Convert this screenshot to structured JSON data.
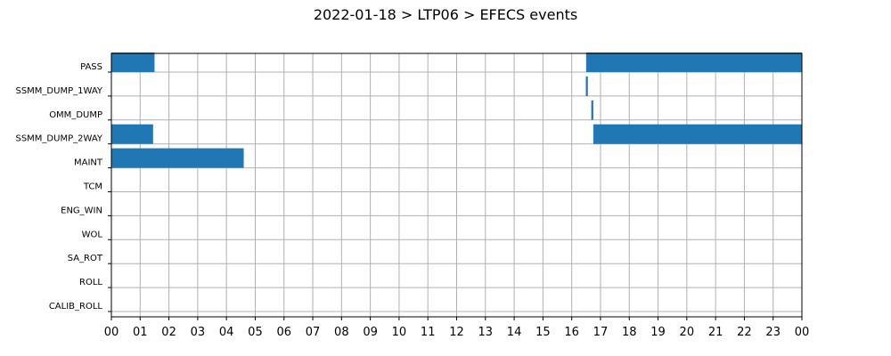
{
  "chart_data": {
    "type": "bar",
    "orientation": "horizontal-timeline",
    "title": "2022-01-18 > LTP06 > EFECS events",
    "xlabel": "",
    "ylabel": "",
    "x_unit": "hours",
    "xlim": [
      0,
      24
    ],
    "x_tick_labels": [
      "00",
      "01",
      "02",
      "03",
      "04",
      "05",
      "06",
      "07",
      "08",
      "09",
      "10",
      "11",
      "12",
      "13",
      "14",
      "15",
      "16",
      "17",
      "18",
      "19",
      "20",
      "21",
      "22",
      "23",
      "00"
    ],
    "categories": [
      "PASS",
      "SSMM_DUMP_1WAY",
      "OMM_DUMP",
      "SSMM_DUMP_2WAY",
      "MAINT",
      "TCM",
      "ENG_WIN",
      "WOL",
      "SA_ROT",
      "ROLL",
      "CALIB_ROLL"
    ],
    "grid": true,
    "bar_color": "#1f77b4",
    "events": [
      {
        "category": "PASS",
        "start": 0.0,
        "end": 1.5
      },
      {
        "category": "PASS",
        "start": 16.5,
        "end": 24.0
      },
      {
        "category": "SSMM_DUMP_1WAY",
        "start": 16.49,
        "end": 16.56
      },
      {
        "category": "OMM_DUMP",
        "start": 16.68,
        "end": 16.75
      },
      {
        "category": "SSMM_DUMP_2WAY",
        "start": 0.0,
        "end": 1.45
      },
      {
        "category": "SSMM_DUMP_2WAY",
        "start": 16.75,
        "end": 24.0
      },
      {
        "category": "MAINT",
        "start": 0.0,
        "end": 4.6
      }
    ]
  }
}
